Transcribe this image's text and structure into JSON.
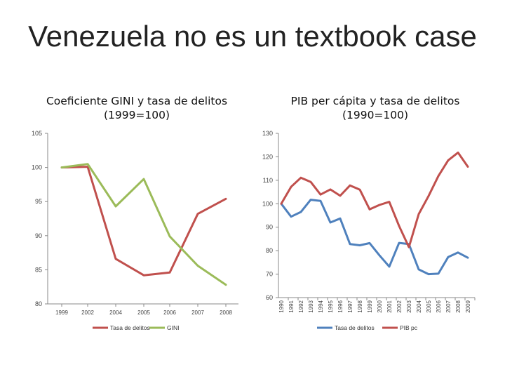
{
  "slide": {
    "title": "Venezuela no es un textbook case"
  },
  "chart_data": [
    {
      "type": "line",
      "title_line1": "Coeficiente GINI y tasa de delitos",
      "title_line2": "(1999=100)",
      "categories": [
        "1999",
        "2002",
        "2004",
        "2005",
        "2006",
        "2007",
        "2008"
      ],
      "ylim": [
        80,
        105
      ],
      "yticks": [
        80,
        85,
        90,
        95,
        100,
        105
      ],
      "series": [
        {
          "name": "Tasa de delitos",
          "color": "#c0504d",
          "values": [
            100,
            100.1,
            86.6,
            84.2,
            84.6,
            93.2,
            95.4
          ]
        },
        {
          "name": "GINI",
          "color": "#9bbb59",
          "values": [
            100,
            100.5,
            94.3,
            98.3,
            89.9,
            85.6,
            82.8
          ]
        }
      ],
      "grid": false,
      "legend": "bottom"
    },
    {
      "type": "line",
      "title_line1": "PIB per cápita y tasa de delitos",
      "title_line2": "(1990=100)",
      "categories": [
        "1990",
        "1991",
        "1992",
        "1993",
        "1994",
        "1995",
        "1996",
        "1997",
        "1998",
        "1999",
        "2000",
        "2001",
        "2002",
        "2003",
        "2004",
        "2005",
        "2006",
        "2007",
        "2008",
        "2009"
      ],
      "ylim": [
        60,
        130
      ],
      "yticks": [
        60,
        70,
        80,
        90,
        100,
        110,
        120,
        130
      ],
      "series": [
        {
          "name": "Tasa de delitos",
          "color": "#4f81bd",
          "values": [
            100,
            94.5,
            96.5,
            101.7,
            101.2,
            92,
            93.7,
            82.8,
            82.3,
            83.2,
            78,
            73.2,
            83.3,
            82.8,
            72,
            70,
            70.2,
            77.3,
            79.2,
            77
          ]
        },
        {
          "name": "PIB pc",
          "color": "#c0504d",
          "values": [
            100,
            107.2,
            111.1,
            109.3,
            103.9,
            106.1,
            103.4,
            107.8,
            106,
            97.6,
            99.5,
            100.8,
            90.5,
            81.5,
            95.6,
            103.3,
            111.8,
            118.5,
            121.8,
            115.8
          ]
        }
      ],
      "grid": false,
      "legend": "bottom"
    }
  ]
}
